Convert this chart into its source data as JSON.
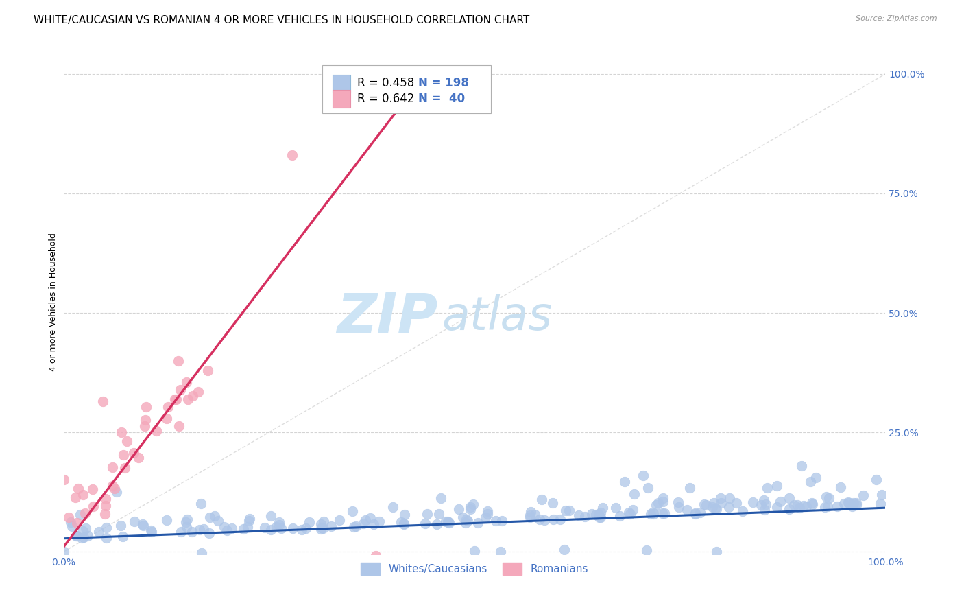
{
  "title": "WHITE/CAUCASIAN VS ROMANIAN 4 OR MORE VEHICLES IN HOUSEHOLD CORRELATION CHART",
  "source": "Source: ZipAtlas.com",
  "ylabel": "4 or more Vehicles in Household",
  "xlim": [
    0,
    1
  ],
  "ylim": [
    -0.005,
    1.05
  ],
  "ytick_labels": [
    "",
    "25.0%",
    "50.0%",
    "75.0%",
    "100.0%"
  ],
  "ytick_values": [
    0,
    0.25,
    0.5,
    0.75,
    1.0
  ],
  "legend_blue_label": "Whites/Caucasians",
  "legend_pink_label": "Romanians",
  "blue_color": "#aec6e8",
  "pink_color": "#f4a8bb",
  "blue_line_color": "#2457a8",
  "pink_line_color": "#d63060",
  "diag_line_color": "#c8c8c8",
  "text_color": "#4472c4",
  "title_fontsize": 11,
  "axis_label_fontsize": 9,
  "tick_fontsize": 10,
  "legend_fontsize": 12,
  "watermark_zip": "ZIP",
  "watermark_atlas": "atlas",
  "watermark_color_zip": "#cde4f5",
  "watermark_color_atlas": "#c8dff0",
  "N_blue": 198,
  "N_pink": 40,
  "R_blue": 0.458,
  "R_pink": 0.642,
  "background_color": "#ffffff",
  "grid_color": "#d0d0d0"
}
